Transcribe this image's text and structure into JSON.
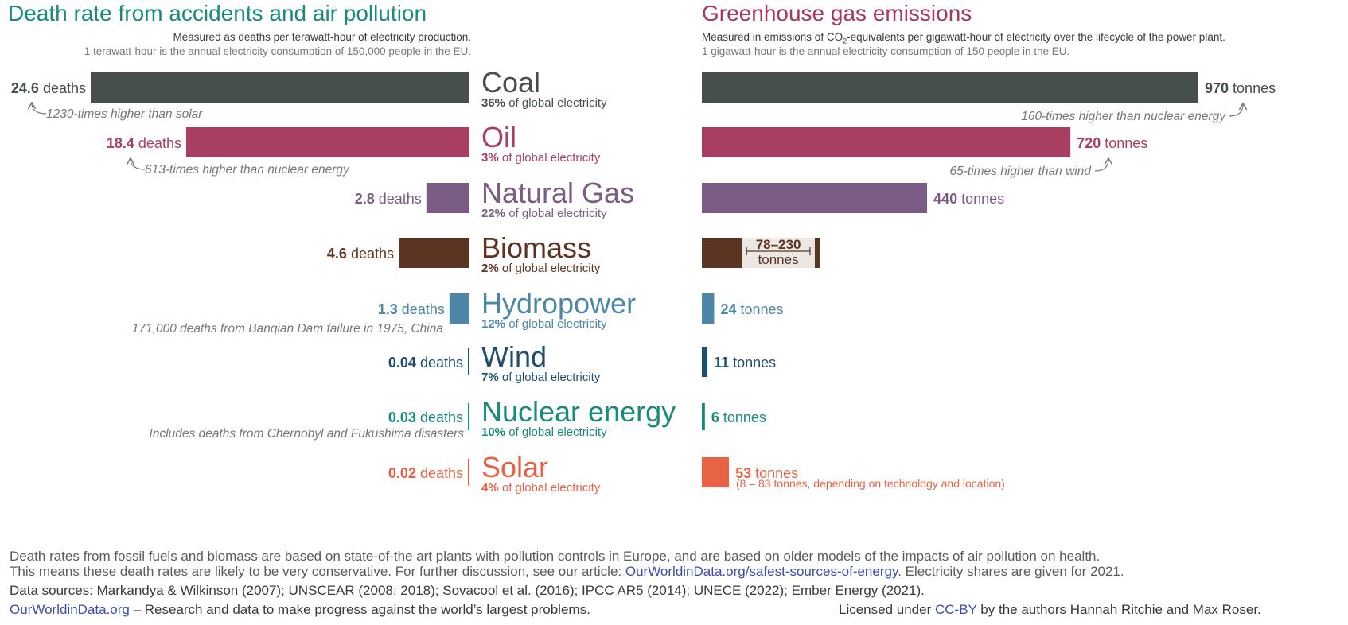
{
  "left_panel": {
    "title": "Death rate from accidents and air pollution",
    "subtitle_1": "Measured as deaths per terawatt-hour of electricity production.",
    "subtitle_2": "1 terawatt-hour is the annual electricity consumption of 150,000 people in the EU.",
    "unit_suffix": "deaths"
  },
  "right_panel": {
    "title": "Greenhouse gas emissions",
    "subtitle_1_a": "Measured in emissions of CO",
    "subtitle_1_sub": "2",
    "subtitle_1_b": "-equivalents per gigawatt-hour of electricity over the lifecycle of the power plant.",
    "subtitle_2": "1 gigawatt-hour is the annual electricity consumption of 150 people in the EU.",
    "unit_suffix": "tonnes"
  },
  "share_suffix": "of global electricity",
  "annotations": {
    "coal_deaths": "1230-times higher than solar",
    "oil_deaths": "613-times higher than nuclear energy",
    "hydro_deaths": "171,000 deaths from Banqian Dam failure in 1975, China",
    "nuclear_deaths": "Includes deaths from Chernobyl and Fukushima disasters",
    "coal_emissions": "160-times higher than nuclear energy",
    "oil_emissions": "65-times higher than wind",
    "biomass_range": "78–230",
    "biomass_range_unit": "tonnes",
    "solar_range": "(8 – 83 tonnes, depending on technology and location)"
  },
  "footer": {
    "line1": "Death rates from fossil fuels and biomass are based on state-of-the art plants with pollution controls in Europe, and are based on older models of the impacts of air pollution on health.",
    "line2_a": "This means these death rates are likely to be very conservative. For further discussion, see our article: ",
    "line2_link": "OurWorldinData.org/safest-sources-of-energy",
    "line2_b": ". Electricity shares are given for 2021.",
    "line3": "Data sources: Markandya & Wilkinson (2007); UNSCEAR (2008; 2018); Sovacool et al. (2016); IPCC AR5 (2014); UNECE (2022); Ember Energy (2021).",
    "owid": "OurWorldinData.org",
    "mission": " – Research and data to make progress against the world’s largest problems.",
    "license_a": "Licensed under ",
    "license_link": "CC-BY",
    "license_b": " by the authors Hannah Ritchie and Max Roser."
  },
  "colors": {
    "left_title": "#1a8a7a",
    "right_title": "#a8365f",
    "coal": "#464f4a",
    "oil": "#a83f61",
    "natural_gas": "#7a5c84",
    "biomass": "#5b3522",
    "hydropower": "#4d87a8",
    "wind": "#1f4f6e",
    "nuclear": "#1a8a7a",
    "solar": "#ea6246"
  },
  "chart_data": [
    {
      "type": "bar",
      "title": "Death rate from accidents and air pollution",
      "categories": [
        "Coal",
        "Oil",
        "Natural Gas",
        "Biomass",
        "Hydropower",
        "Wind",
        "Nuclear energy",
        "Solar"
      ],
      "values": [
        24.6,
        18.4,
        2.8,
        4.6,
        1.3,
        0.04,
        0.03,
        0.02
      ],
      "value_labels": [
        "24.6",
        "18.4",
        "2.8",
        "4.6",
        "1.3",
        "0.04",
        "0.03",
        "0.02"
      ],
      "share_labels": [
        "36%",
        "3%",
        "22%",
        "2%",
        "12%",
        "7%",
        "10%",
        "4%"
      ],
      "orientation": "horizontal",
      "direction": "right-to-left",
      "xlim": [
        0,
        24.6
      ]
    },
    {
      "type": "bar",
      "title": "Greenhouse gas emissions",
      "categories": [
        "Coal",
        "Oil",
        "Natural Gas",
        "Biomass",
        "Hydropower",
        "Wind",
        "Nuclear energy",
        "Solar"
      ],
      "values": [
        970,
        720,
        440,
        78,
        24,
        11,
        6,
        53
      ],
      "value_labels": [
        "970",
        "720",
        "440",
        "",
        "24",
        "11",
        "6",
        "53"
      ],
      "biomass_range": [
        78,
        230
      ],
      "orientation": "horizontal",
      "direction": "left-to-right",
      "xlim": [
        0,
        970
      ]
    }
  ]
}
